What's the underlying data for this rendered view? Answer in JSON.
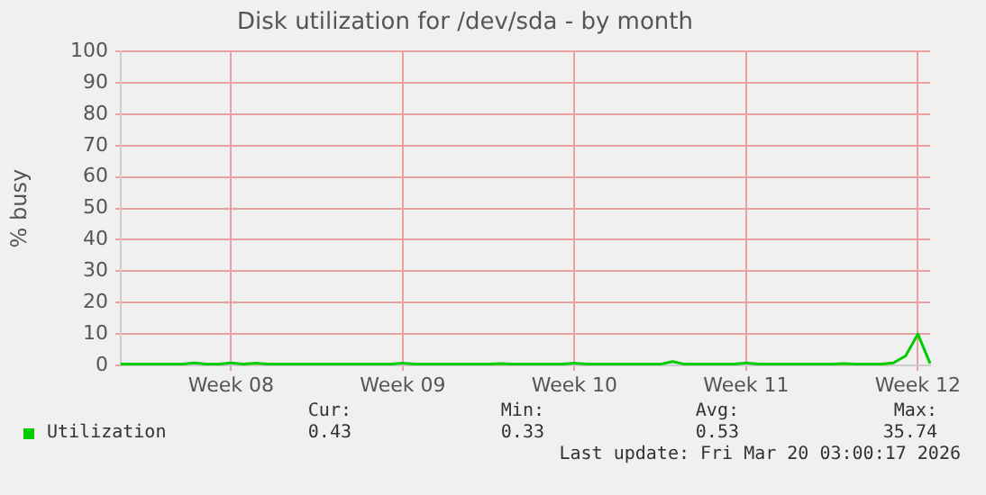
{
  "chart_data": {
    "type": "line",
    "title": "Disk utilization for /dev/sda - by month",
    "ylabel": "% busy",
    "categories": [
      null,
      null,
      null,
      null,
      null,
      null,
      null,
      null,
      null,
      "Week 08",
      null,
      null,
      null,
      null,
      null,
      null,
      null,
      null,
      null,
      null,
      null,
      null,
      null,
      "Week 09",
      null,
      null,
      null,
      null,
      null,
      null,
      null,
      null,
      null,
      null,
      null,
      null,
      null,
      "Week 10",
      null,
      null,
      null,
      null,
      null,
      null,
      null,
      null,
      null,
      null,
      null,
      null,
      null,
      "Week 11",
      null,
      null,
      null,
      null,
      null,
      null,
      null,
      null,
      null,
      null,
      null,
      null,
      null,
      "Week 12",
      null
    ],
    "series": [
      {
        "name": "Utilization",
        "color": "#00cc00",
        "values": [
          0.4,
          0.4,
          0.4,
          0.4,
          0.4,
          0.4,
          0.8,
          0.4,
          0.4,
          0.8,
          0.4,
          0.7,
          0.4,
          0.4,
          0.4,
          0.4,
          0.4,
          0.4,
          0.4,
          0.4,
          0.4,
          0.4,
          0.4,
          0.7,
          0.4,
          0.4,
          0.4,
          0.4,
          0.4,
          0.4,
          0.4,
          0.6,
          0.4,
          0.4,
          0.4,
          0.4,
          0.4,
          0.7,
          0.4,
          0.4,
          0.4,
          0.4,
          0.4,
          0.4,
          0.4,
          1.2,
          0.4,
          0.4,
          0.4,
          0.4,
          0.4,
          0.8,
          0.4,
          0.4,
          0.4,
          0.4,
          0.4,
          0.4,
          0.4,
          0.6,
          0.4,
          0.4,
          0.4,
          0.8,
          3,
          10,
          0.6
        ]
      }
    ],
    "ylim": [
      0,
      100
    ],
    "yticks": [
      0,
      10,
      20,
      30,
      40,
      50,
      60,
      70,
      80,
      90,
      100
    ],
    "grid": true,
    "legend": "bottom",
    "marker": "none",
    "line_style": "solid",
    "annotations": [
      "Cur:",
      "Min:",
      "Avg:",
      "Max:",
      "0.43",
      "0.33",
      "0.53",
      "35.74",
      "Last update: Fri Mar 20 03:00:17 2026"
    ]
  }
}
